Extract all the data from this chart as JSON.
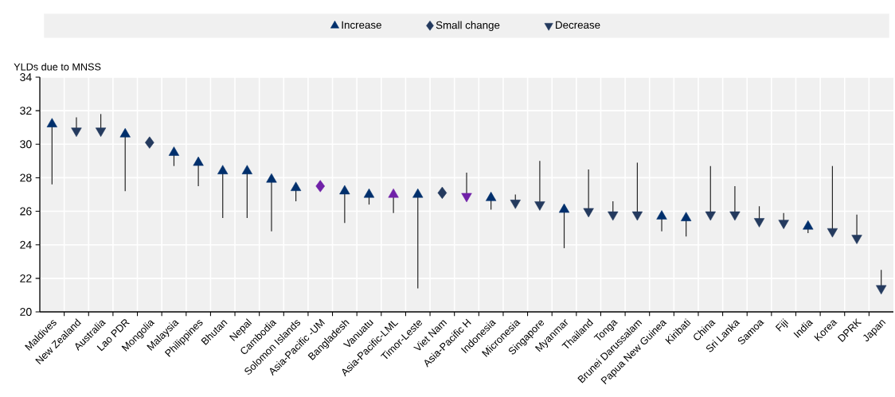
{
  "chart_data": {
    "type": "scatter",
    "ylabel": "YLDs due to MNSS",
    "categories": [
      "Maldives",
      "New Zealand",
      "Australia",
      "Lao PDR",
      "Mongolia",
      "Malaysia",
      "Philippines",
      "Bhutan",
      "Nepal",
      "Cambodia",
      "Solomon Islands",
      "Asia-Pacific -UM",
      "Bangladesh",
      "Vanuatu",
      "Asia-Pacific-LML",
      "Timor-Leste",
      "Viet Nam",
      "Asia-Pacific H",
      "Indonesia",
      "Micronesia",
      "Singapore",
      "Myanmar",
      "Thailand",
      "Tonga",
      "Brunei Darussalam",
      "Papua New Guinea",
      "Kiribati",
      "China",
      "Sri Lanka",
      "Samoa",
      "Fiji",
      "India",
      "Korea",
      "DPRK",
      "Japan"
    ],
    "series": [
      {
        "name": "Increase",
        "marker": "triangle",
        "color": "#002f6c",
        "colors": [
          "#002f6c",
          "#002f6c",
          "#002f6c",
          "#002f6c",
          "#002f6c",
          "#002f6c",
          "#002f6c",
          "#002f6c",
          "#002f6c",
          "#002f6c",
          "#002f6c",
          "#002f6c",
          "#002f6c",
          "#002f6c",
          "#7021a8",
          "#002f6c",
          "#002f6c",
          "#002f6c",
          "#002f6c",
          "#002f6c",
          "#002f6c",
          "#002f6c",
          "#002f6c",
          "#002f6c",
          "#002f6c",
          "#002f6c",
          "#002f6c",
          "#002f6c",
          "#002f6c",
          "#002f6c",
          "#002f6c",
          "#002f6c",
          "#002f6c",
          "#002f6c",
          "#002f6c"
        ],
        "values": [
          31.2,
          null,
          null,
          30.6,
          null,
          29.5,
          28.9,
          28.4,
          28.4,
          27.9,
          27.4,
          null,
          27.2,
          27.0,
          27.0,
          27.0,
          null,
          null,
          26.8,
          null,
          null,
          26.1,
          null,
          null,
          null,
          25.7,
          25.6,
          null,
          null,
          null,
          null,
          25.1,
          null,
          null,
          null
        ],
        "errors": [
          [
            27.6,
            31.2
          ],
          null,
          null,
          [
            27.2,
            30.6
          ],
          null,
          [
            28.7,
            29.5
          ],
          [
            27.5,
            28.9
          ],
          [
            25.6,
            28.4
          ],
          [
            25.6,
            28.4
          ],
          [
            24.8,
            27.9
          ],
          [
            26.6,
            27.4
          ],
          null,
          [
            25.3,
            27.2
          ],
          [
            26.4,
            27.0
          ],
          [
            25.9,
            27.0
          ],
          [
            21.4,
            27.0
          ],
          null,
          null,
          [
            26.1,
            26.8
          ],
          null,
          null,
          [
            23.8,
            26.1
          ],
          null,
          null,
          null,
          [
            24.8,
            25.7
          ],
          [
            24.5,
            25.6
          ],
          null,
          null,
          null,
          null,
          [
            24.7,
            25.1
          ],
          null,
          null,
          null
        ]
      },
      {
        "name": "Small change",
        "marker": "diamond",
        "color": "#243a5e",
        "colors": [
          "#243a5e",
          "#243a5e",
          "#243a5e",
          "#243a5e",
          "#243a5e",
          "#243a5e",
          "#243a5e",
          "#243a5e",
          "#243a5e",
          "#243a5e",
          "#243a5e",
          "#7021a8",
          "#243a5e",
          "#243a5e",
          "#243a5e",
          "#243a5e",
          "#243a5e",
          "#243a5e",
          "#243a5e",
          "#243a5e",
          "#243a5e",
          "#243a5e",
          "#243a5e",
          "#243a5e",
          "#243a5e",
          "#243a5e",
          "#243a5e",
          "#243a5e",
          "#243a5e",
          "#243a5e",
          "#243a5e",
          "#243a5e",
          "#243a5e",
          "#243a5e",
          "#243a5e"
        ],
        "values": [
          null,
          null,
          null,
          null,
          30.1,
          null,
          null,
          null,
          null,
          null,
          null,
          27.5,
          null,
          null,
          null,
          null,
          27.1,
          null,
          null,
          null,
          null,
          null,
          null,
          null,
          null,
          null,
          null,
          null,
          null,
          null,
          null,
          null,
          null,
          null,
          null
        ]
      },
      {
        "name": "Decrease",
        "marker": "triangle-down",
        "color": "#243a5e",
        "colors": [
          "#243a5e",
          "#243a5e",
          "#243a5e",
          "#243a5e",
          "#243a5e",
          "#243a5e",
          "#243a5e",
          "#243a5e",
          "#243a5e",
          "#243a5e",
          "#243a5e",
          "#243a5e",
          "#243a5e",
          "#243a5e",
          "#243a5e",
          "#243a5e",
          "#243a5e",
          "#7021a8",
          "#243a5e",
          "#243a5e",
          "#243a5e",
          "#243a5e",
          "#243a5e",
          "#243a5e",
          "#243a5e",
          "#243a5e",
          "#243a5e",
          "#243a5e",
          "#243a5e",
          "#243a5e",
          "#243a5e",
          "#243a5e",
          "#243a5e",
          "#243a5e",
          "#243a5e"
        ],
        "values": [
          null,
          30.8,
          30.8,
          null,
          null,
          null,
          null,
          null,
          null,
          null,
          null,
          null,
          null,
          null,
          null,
          null,
          null,
          26.9,
          null,
          26.5,
          26.4,
          null,
          26.0,
          25.8,
          25.8,
          null,
          null,
          25.8,
          25.8,
          25.4,
          25.3,
          null,
          24.8,
          24.4,
          21.4
        ],
        "errors": [
          null,
          [
            30.8,
            31.6
          ],
          [
            30.8,
            31.8
          ],
          null,
          null,
          null,
          null,
          null,
          null,
          null,
          null,
          null,
          null,
          null,
          null,
          null,
          null,
          [
            26.9,
            28.3
          ],
          null,
          [
            26.5,
            27.0
          ],
          [
            26.4,
            29.0
          ],
          null,
          [
            26.0,
            28.5
          ],
          [
            25.8,
            26.6
          ],
          [
            25.8,
            28.9
          ],
          null,
          null,
          [
            25.8,
            28.7
          ],
          [
            25.8,
            27.5
          ],
          [
            25.4,
            26.3
          ],
          [
            25.3,
            25.9
          ],
          null,
          [
            24.8,
            28.7
          ],
          [
            24.4,
            25.8
          ],
          [
            21.4,
            22.5
          ]
        ]
      }
    ],
    "ylim": [
      20,
      34
    ],
    "yticks": [
      20,
      22,
      24,
      26,
      28,
      30,
      32,
      34
    ],
    "grid": true,
    "legend": "top"
  }
}
